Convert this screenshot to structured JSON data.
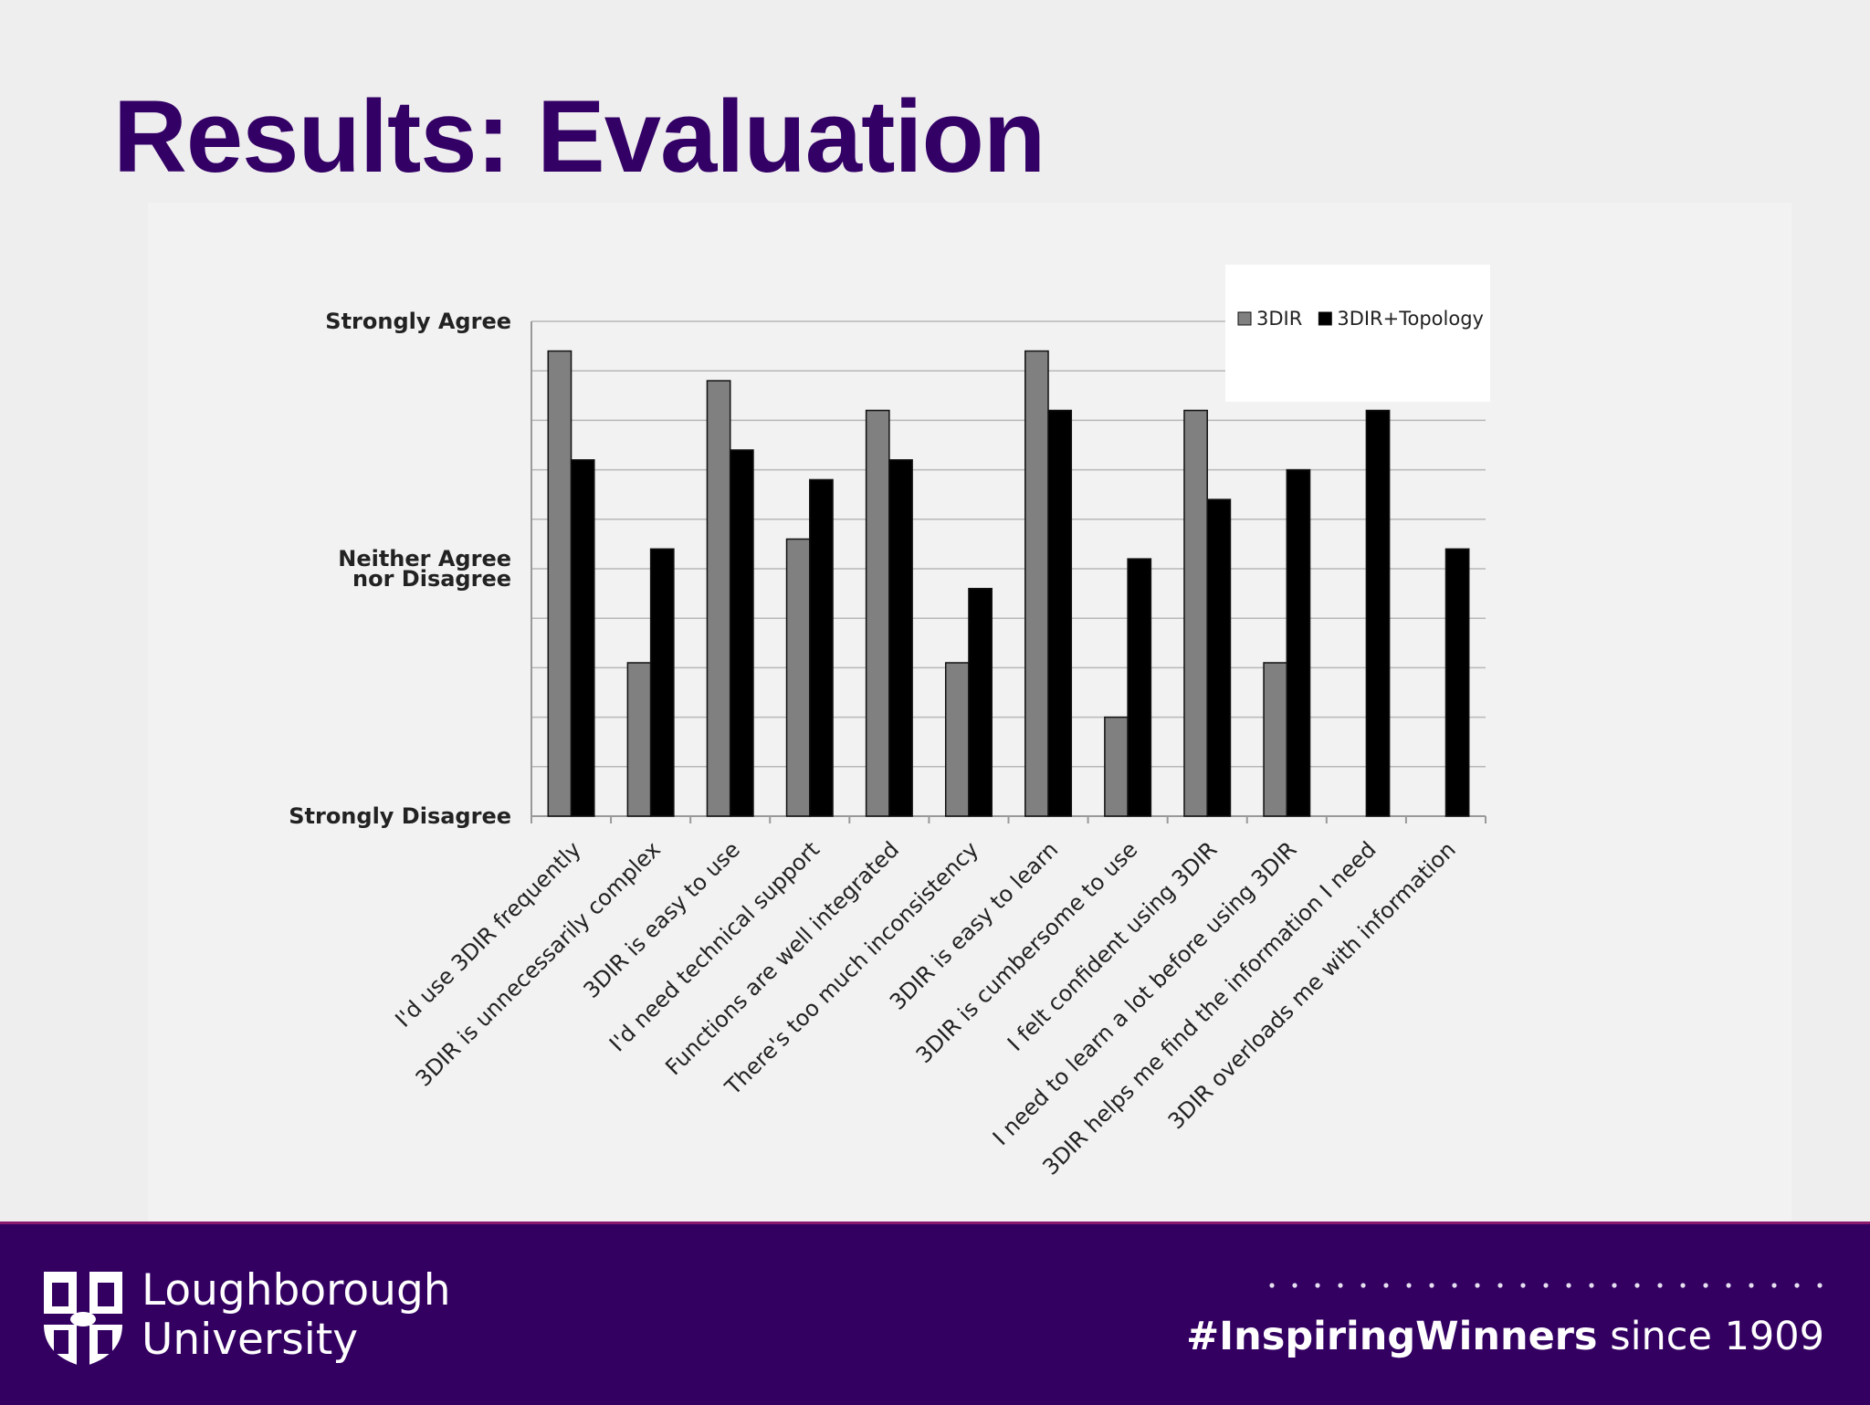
{
  "slide": {
    "title": "Results: Evaluation"
  },
  "chart_data": {
    "type": "bar",
    "categories": [
      "I'd use 3DIR frequently",
      "3DIR is unnecessarily complex",
      "3DIR is easy to use",
      "I'd need technical support",
      "Functions are well integrated",
      "There's too much inconsistency",
      "3DIR is easy to learn",
      "3DIR is cumbersome to use",
      "I felt  confident using 3DIR",
      "I need to learn a lot before using 3DIR",
      "3DIR helps me find the information I need",
      "3DIR overloads me with information"
    ],
    "series": [
      {
        "name": "3DIR",
        "color": "#808080",
        "values": [
          4.7,
          1.55,
          4.4,
          2.8,
          4.1,
          1.55,
          4.7,
          1.0,
          4.1,
          1.55,
          null,
          null
        ]
      },
      {
        "name": "3DIR+Topology",
        "color": "#000000",
        "values": [
          3.6,
          2.7,
          3.7,
          3.4,
          3.6,
          2.3,
          4.1,
          2.6,
          3.2,
          3.5,
          4.1,
          2.7
        ]
      }
    ],
    "ylim": [
      0,
      5
    ],
    "y_tick_labels": [
      {
        "value": 5,
        "label": "Strongly Agree"
      },
      {
        "value": 2.5,
        "label": "Neither Agree\nnor Disagree"
      },
      {
        "value": 0,
        "label": "Strongly Disagree"
      }
    ],
    "grid": true,
    "legend": "top-right"
  },
  "footer": {
    "university_line1": "Loughborough",
    "university_line2": "University",
    "tagline_bold": "#InspiringWinners",
    "tagline_rest": " since 1909",
    "background": "#330062"
  }
}
